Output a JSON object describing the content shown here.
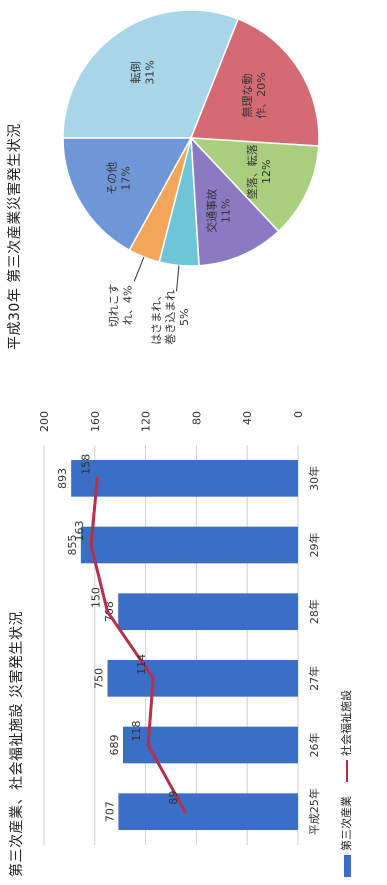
{
  "chart_data": [
    {
      "type": "bar",
      "title": "第三次産業、社会福祉施設 災害発生状況",
      "categories": [
        "平成25年",
        "26年",
        "27年",
        "28年",
        "29年",
        "30年"
      ],
      "y_left_lim": [
        0,
        1000
      ],
      "y_right_lim": [
        0,
        200
      ],
      "right_ticks": [
        "0",
        "40",
        "80",
        "120",
        "160",
        "200"
      ],
      "series": [
        {
          "name": "第三次産業",
          "type": "bar",
          "color": "#3b6fc6",
          "values": [
            707,
            689,
            750,
            708,
            855,
            893
          ]
        },
        {
          "name": "社会福祉施設",
          "type": "line",
          "color": "#b5304a",
          "values": [
            89,
            118,
            114,
            150,
            163,
            158
          ]
        }
      ],
      "grid": true,
      "legend_position": "bottom"
    },
    {
      "type": "pie",
      "title": "平成30年 第三次産業災害発生状況",
      "slices": [
        {
          "label": "転倒",
          "pct_label": "31%",
          "value": 31,
          "color": "#a9d5e8"
        },
        {
          "label": "無理な動作",
          "display_label": "無理な動\n作、20%",
          "value": 20,
          "color": "#d46a72"
        },
        {
          "label": "墜落、転落",
          "display_label": "墜落、転落\n12%",
          "value": 12,
          "color": "#a9cf7e"
        },
        {
          "label": "交通事故",
          "display_label": "交通事故\n11%",
          "value": 11,
          "color": "#8b7ac2"
        },
        {
          "label": "はさまれ、巻き込まれ",
          "display_label": "はさまれ、\n巻き込まれ\n5%",
          "value": 5,
          "color": "#6ec5d8"
        },
        {
          "label": "切れこすれ",
          "display_label": "切れこす\nれ、4%",
          "value": 4,
          "color": "#f3a55a"
        },
        {
          "label": "その他",
          "display_label": "その他\n17%",
          "value": 17,
          "color": "#6f96d6"
        }
      ]
    }
  ]
}
